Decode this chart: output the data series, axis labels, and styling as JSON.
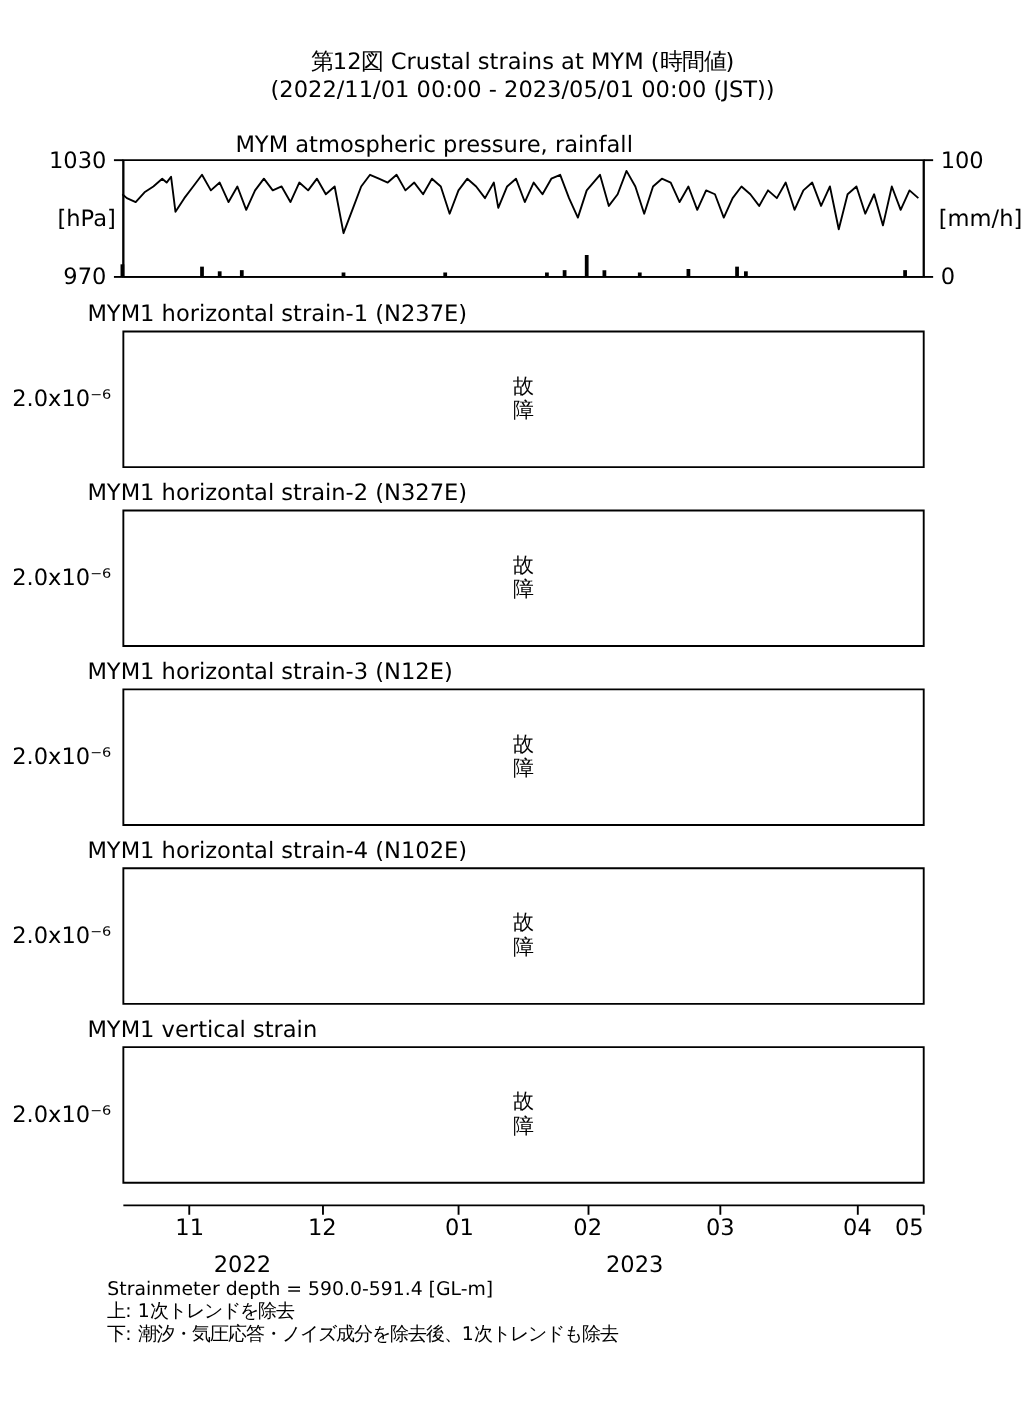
{
  "chart_data": [
    {
      "type": "line",
      "title": "第12図 Crustal strains at MYM (時間値)",
      "subtitle": "(2022/11/01 00:00 - 2023/05/01 00:00 (JST))",
      "annotations": [
        "MYM atmospheric pressure, rainfall"
      ],
      "ylabel": "[hPa]",
      "y2label": "[mm/h]",
      "xlim": [
        "2022-11-01",
        "2023-05-01"
      ],
      "xticks": [
        {
          "value": "2022-11-16",
          "label": "11"
        },
        {
          "value": "2022-12-16",
          "label": "12"
        },
        {
          "value": "2023-01-16",
          "label": "01"
        },
        {
          "value": "2023-02-14",
          "label": "02"
        },
        {
          "value": "2023-03-16",
          "label": "03"
        },
        {
          "value": "2023-04-16",
          "label": "04"
        },
        {
          "value": "2023-05-01",
          "label": "05"
        }
      ],
      "ylim": [
        970,
        1030
      ],
      "yticks": [
        970,
        1030
      ],
      "y2lim": [
        0,
        100
      ],
      "y2ticks": [
        0,
        100
      ],
      "tick_labels": "y",
      "series": [
        {
          "type": "line",
          "color": "#000000",
          "x": [
            "2022-11-01",
            "2022-11-02",
            "2022-11-04",
            "2022-11-06",
            "2022-11-08",
            "2022-11-10",
            "2022-11-11",
            "2022-11-12",
            "2022-11-13",
            "2022-11-15",
            "2022-11-17",
            "2022-11-19",
            "2022-11-21",
            "2022-11-23",
            "2022-11-25",
            "2022-11-27",
            "2022-11-29",
            "2022-12-01",
            "2022-12-03",
            "2022-12-05",
            "2022-12-07",
            "2022-12-09",
            "2022-12-11",
            "2022-12-13",
            "2022-12-15",
            "2022-12-17",
            "2022-12-19",
            "2022-12-21",
            "2022-12-23",
            "2022-12-25",
            "2022-12-27",
            "2022-12-29",
            "2022-12-31",
            "2023-01-02",
            "2023-01-04",
            "2023-01-06",
            "2023-01-08",
            "2023-01-10",
            "2023-01-12",
            "2023-01-14",
            "2023-01-16",
            "2023-01-18",
            "2023-01-20",
            "2023-01-22",
            "2023-01-24",
            "2023-01-25",
            "2023-01-27",
            "2023-01-29",
            "2023-01-31",
            "2023-02-02",
            "2023-02-04",
            "2023-02-06",
            "2023-02-08",
            "2023-02-10",
            "2023-02-12",
            "2023-02-14",
            "2023-02-17",
            "2023-02-19",
            "2023-02-21",
            "2023-02-23",
            "2023-02-25",
            "2023-02-27",
            "2023-03-01",
            "2023-03-03",
            "2023-03-05",
            "2023-03-07",
            "2023-03-09",
            "2023-03-11",
            "2023-03-13",
            "2023-03-15",
            "2023-03-17",
            "2023-03-19",
            "2023-03-21",
            "2023-03-23",
            "2023-03-25",
            "2023-03-27",
            "2023-03-29",
            "2023-03-31",
            "2023-04-02",
            "2023-04-04",
            "2023-04-06",
            "2023-04-08",
            "2023-04-10",
            "2023-04-12",
            "2023-04-14",
            "2023-04-16",
            "2023-04-18",
            "2023-04-20",
            "2023-04-22",
            "2023-04-24",
            "2023-04-26",
            "2023-04-28",
            "2023-04-30"
          ],
          "values": [
            1012,
            1010,
            1008,
            1013,
            1016,
            1020,
            1018,
            1021,
            1003,
            1010,
            1016,
            1022,
            1014,
            1018,
            1008,
            1016,
            1004,
            1014,
            1020,
            1014,
            1016,
            1008,
            1018,
            1014,
            1020,
            1012,
            1016,
            992,
            1004,
            1016,
            1022,
            1020,
            1018,
            1022,
            1014,
            1018,
            1012,
            1020,
            1016,
            1002,
            1014,
            1020,
            1016,
            1010,
            1018,
            1005,
            1016,
            1020,
            1008,
            1018,
            1012,
            1020,
            1022,
            1010,
            1000,
            1014,
            1022,
            1006,
            1012,
            1024,
            1016,
            1002,
            1016,
            1020,
            1018,
            1008,
            1016,
            1004,
            1014,
            1012,
            1000,
            1010,
            1016,
            1012,
            1006,
            1014,
            1010,
            1018,
            1004,
            1014,
            1018,
            1006,
            1016,
            994,
            1012,
            1016,
            1002,
            1012,
            996,
            1016,
            1004,
            1014,
            1010
          ]
        },
        {
          "type": "bar",
          "axis": "y2",
          "color": "#000000",
          "x": [
            "2022-11-01",
            "2022-11-19",
            "2022-11-23",
            "2022-11-28",
            "2022-12-21",
            "2023-01-13",
            "2023-02-05",
            "2023-02-09",
            "2023-02-14",
            "2023-02-18",
            "2023-02-26",
            "2023-03-09",
            "2023-03-20",
            "2023-03-22",
            "2023-04-27"
          ],
          "values": [
            10,
            8,
            4,
            5,
            3,
            3,
            3,
            5,
            18,
            5,
            3,
            6,
            8,
            4,
            5
          ]
        }
      ]
    },
    {
      "type": "other",
      "title": "MYM1 horizontal strain-1 (N237E)",
      "ylabel": "2.0x10⁻⁶",
      "annotations": [
        "故障"
      ]
    },
    {
      "type": "other",
      "title": "MYM1 horizontal strain-2 (N327E)",
      "ylabel": "2.0x10⁻⁶",
      "annotations": [
        "故障"
      ]
    },
    {
      "type": "other",
      "title": "MYM1 horizontal strain-3 (N12E)",
      "ylabel": "2.0x10⁻⁶",
      "annotations": [
        "故障"
      ]
    },
    {
      "type": "other",
      "title": "MYM1 horizontal strain-4 (N102E)",
      "ylabel": "2.0x10⁻⁶",
      "annotations": [
        "故障"
      ]
    },
    {
      "type": "other",
      "title": "MYM1 vertical strain",
      "ylabel": "2.0x10⁻⁶",
      "annotations": [
        "故障",
        "2022",
        "2023",
        "Strainmeter depth = 590.0-591.4 [GL-m]",
        "上: 1次トレンドを除去",
        "下: 潮汐・気圧応答・ノイズ成分を除去後、1次トレンドも除去"
      ]
    }
  ]
}
